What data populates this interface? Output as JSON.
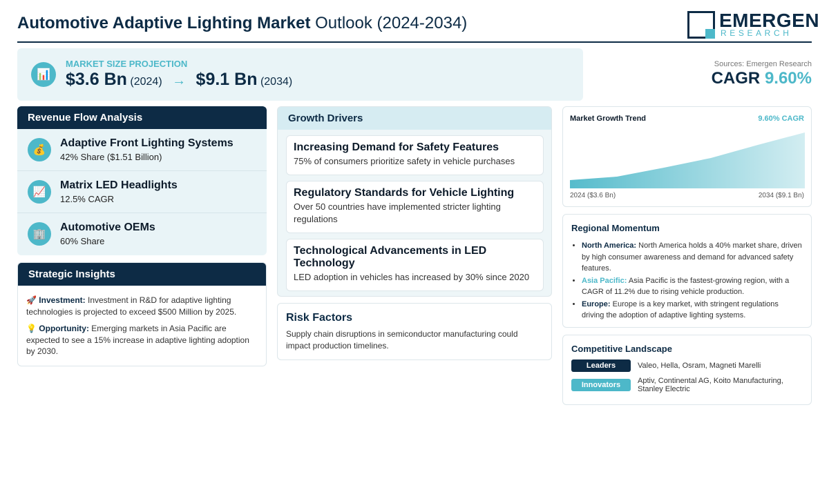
{
  "header": {
    "title_bold": "Automotive Adaptive Lighting Market",
    "title_rest": "Outlook (2024-2034)",
    "logo_name": "EMERGEN",
    "logo_sub": "RESEARCH"
  },
  "projection": {
    "label": "MARKET SIZE PROJECTION",
    "icon": "bar-chart-icon",
    "start_value": "$3.6 Bn",
    "start_year": "(2024)",
    "arrow": "→",
    "end_value": "$9.1 Bn",
    "end_year": "(2034)"
  },
  "summary": {
    "sources": "Sources: Emergen Research",
    "cagr_label": "CAGR",
    "cagr_value": "9.60%"
  },
  "revenue": {
    "title": "Revenue Flow Analysis",
    "items": [
      {
        "icon": "money-bag-icon",
        "glyph": "💰",
        "title": "Adaptive Front Lighting Systems",
        "sub": "42% Share ($1.51 Billion)"
      },
      {
        "icon": "trend-chart-icon",
        "glyph": "📈",
        "title": "Matrix LED Headlights",
        "sub": "12.5% CAGR"
      },
      {
        "icon": "building-icon",
        "glyph": "🏢",
        "title": "Automotive OEMs",
        "sub": "60% Share"
      }
    ]
  },
  "insights": {
    "title": "Strategic Insights",
    "items": [
      {
        "glyph": "🚀",
        "label": "Investment:",
        "text": "Investment in R&D for adaptive lighting technologies is projected to exceed $500 Million by 2025."
      },
      {
        "glyph": "💡",
        "label": "Opportunity:",
        "text": "Emerging markets in Asia Pacific are expected to see a 15% increase in adaptive lighting adoption by 2030."
      }
    ]
  },
  "drivers": {
    "title": "Growth Drivers",
    "items": [
      {
        "title": "Increasing Demand for Safety Features",
        "text": "75% of consumers prioritize safety in vehicle purchases"
      },
      {
        "title": "Regulatory Standards for Vehicle Lighting",
        "text": "Over 50 countries have implemented stricter lighting regulations"
      },
      {
        "title": "Technological Advancements in LED Technology",
        "text": "LED adoption in vehicles has increased by 30% since 2020"
      }
    ]
  },
  "risk": {
    "title": "Risk Factors",
    "text": "Supply chain disruptions in semiconductor manufacturing could impact production timelines."
  },
  "trend": {
    "title": "Market Growth Trend",
    "cagr": "9.60% CAGR",
    "start_label": "2024 ($3.6 Bn)",
    "end_label": "2034 ($9.1 Bn)",
    "color": "#4db8c9"
  },
  "regional": {
    "title": "Regional Momentum",
    "items": [
      {
        "label": "North America:",
        "text": "North America holds a 40% market share, driven by high consumer awareness and demand for advanced safety features.",
        "accent": false
      },
      {
        "label": "Asia Pacific:",
        "text": "Asia Pacific is the fastest-growing region, with a CAGR of 11.2% due to rising vehicle production.",
        "accent": true
      },
      {
        "label": "Europe:",
        "text": "Europe is a key market, with stringent regulations driving the adoption of adaptive lighting systems.",
        "accent": false
      }
    ]
  },
  "competitive": {
    "title": "Competitive Landscape",
    "rows": [
      {
        "badge": "Leaders",
        "text": "Valeo, Hella, Osram, Magneti Marelli",
        "color": "#0d2b45"
      },
      {
        "badge": "Innovators",
        "text": "Aptiv, Continental AG, Koito Manufacturing, Stanley Electric",
        "color": "#4db8c9"
      }
    ]
  },
  "colors": {
    "navy": "#0d2b45",
    "teal": "#4db8c9"
  }
}
